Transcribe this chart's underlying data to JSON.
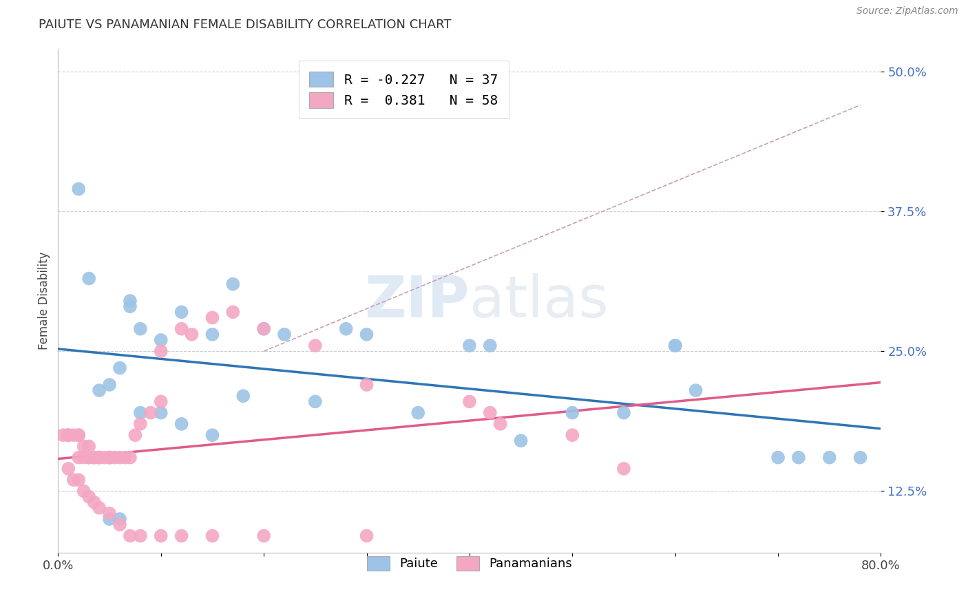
{
  "title": "PAIUTE VS PANAMANIAN FEMALE DISABILITY CORRELATION CHART",
  "source": "Source: ZipAtlas.com",
  "xlabel": "",
  "ylabel": "Female Disability",
  "xlim": [
    0.0,
    0.8
  ],
  "ylim": [
    0.07,
    0.52
  ],
  "yticks": [
    0.125,
    0.25,
    0.375,
    0.5
  ],
  "ytick_labels": [
    "12.5%",
    "25.0%",
    "37.5%",
    "50.0%"
  ],
  "xticks": [
    0.0,
    0.1,
    0.2,
    0.3,
    0.4,
    0.5,
    0.6,
    0.7,
    0.8
  ],
  "xtick_labels": [
    "0.0%",
    "",
    "",
    "",
    "",
    "",
    "",
    "",
    "80.0%"
  ],
  "paiute_color": "#9dc3e6",
  "panamanian_color": "#f4a7c3",
  "paiute_line_color": "#2e75b6",
  "panamanian_line_color": "#e05b8a",
  "paiute_R": -0.227,
  "paiute_N": 37,
  "panamanian_R": 0.381,
  "panamanian_N": 58,
  "watermark": "ZIPAtlas",
  "background_color": "#ffffff",
  "paiute_x": [
    0.02,
    0.03,
    0.07,
    0.04,
    0.05,
    0.06,
    0.07,
    0.08,
    0.1,
    0.12,
    0.15,
    0.17,
    0.2,
    0.22,
    0.28,
    0.3,
    0.4,
    0.42,
    0.5,
    0.55,
    0.6,
    0.6,
    0.62,
    0.7,
    0.72,
    0.75,
    0.78,
    0.05,
    0.06,
    0.08,
    0.1,
    0.12,
    0.15,
    0.18,
    0.25,
    0.35,
    0.45
  ],
  "paiute_y": [
    0.395,
    0.315,
    0.295,
    0.215,
    0.22,
    0.235,
    0.29,
    0.27,
    0.26,
    0.285,
    0.265,
    0.31,
    0.27,
    0.265,
    0.27,
    0.265,
    0.255,
    0.255,
    0.195,
    0.195,
    0.255,
    0.255,
    0.215,
    0.155,
    0.155,
    0.155,
    0.155,
    0.1,
    0.1,
    0.195,
    0.195,
    0.185,
    0.175,
    0.21,
    0.205,
    0.195,
    0.17
  ],
  "panamanian_x": [
    0.005,
    0.01,
    0.01,
    0.015,
    0.02,
    0.02,
    0.02,
    0.025,
    0.025,
    0.03,
    0.03,
    0.03,
    0.035,
    0.035,
    0.04,
    0.04,
    0.04,
    0.045,
    0.05,
    0.05,
    0.05,
    0.055,
    0.06,
    0.065,
    0.07,
    0.075,
    0.08,
    0.09,
    0.1,
    0.1,
    0.12,
    0.13,
    0.15,
    0.17,
    0.2,
    0.25,
    0.3,
    0.4,
    0.42,
    0.43,
    0.5,
    0.55,
    0.01,
    0.015,
    0.02,
    0.025,
    0.03,
    0.035,
    0.04,
    0.05,
    0.06,
    0.07,
    0.08,
    0.1,
    0.12,
    0.15,
    0.2,
    0.3
  ],
  "panamanian_y": [
    0.175,
    0.175,
    0.175,
    0.175,
    0.175,
    0.175,
    0.155,
    0.165,
    0.155,
    0.165,
    0.155,
    0.155,
    0.155,
    0.155,
    0.155,
    0.155,
    0.155,
    0.155,
    0.155,
    0.155,
    0.155,
    0.155,
    0.155,
    0.155,
    0.155,
    0.175,
    0.185,
    0.195,
    0.205,
    0.25,
    0.27,
    0.265,
    0.28,
    0.285,
    0.27,
    0.255,
    0.22,
    0.205,
    0.195,
    0.185,
    0.175,
    0.145,
    0.145,
    0.135,
    0.135,
    0.125,
    0.12,
    0.115,
    0.11,
    0.105,
    0.095,
    0.085,
    0.085,
    0.085,
    0.085,
    0.085,
    0.085,
    0.085
  ],
  "ref_line_x": [
    0.2,
    0.78
  ],
  "ref_line_y": [
    0.25,
    0.47
  ]
}
